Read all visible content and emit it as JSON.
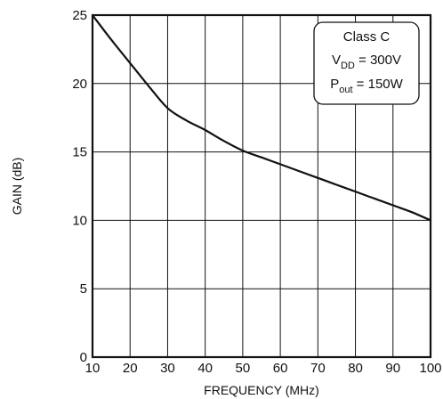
{
  "chart_data": {
    "type": "line",
    "title": "",
    "xlabel": "FREQUENCY (MHz)",
    "ylabel": "GAIN (dB)",
    "xlim": [
      10,
      100
    ],
    "ylim": [
      0,
      25
    ],
    "x_ticks": [
      "10",
      "20",
      "30",
      "40",
      "50",
      "60",
      "70",
      "80",
      "90",
      "100"
    ],
    "y_ticks": [
      "0",
      "5",
      "10",
      "15",
      "20",
      "25"
    ],
    "grid": true,
    "series": [
      {
        "x": [
          10,
          15,
          20,
          25,
          30,
          35,
          40,
          45,
          50,
          55,
          60,
          65,
          70,
          75,
          80,
          85,
          90,
          95,
          100
        ],
        "y": [
          25,
          23.2,
          21.5,
          19.8,
          18.2,
          17.3,
          16.6,
          15.8,
          15.1,
          14.6,
          14.1,
          13.6,
          13.1,
          12.6,
          12.1,
          11.6,
          11.1,
          10.6,
          10.0
        ]
      }
    ],
    "annotation": {
      "line1": "Class C",
      "line2_main": "V",
      "line2_sub": "DD",
      "line2_rest": " = 300V",
      "line3_main": "P",
      "line3_sub": "out",
      "line3_rest": " = 150W"
    }
  }
}
